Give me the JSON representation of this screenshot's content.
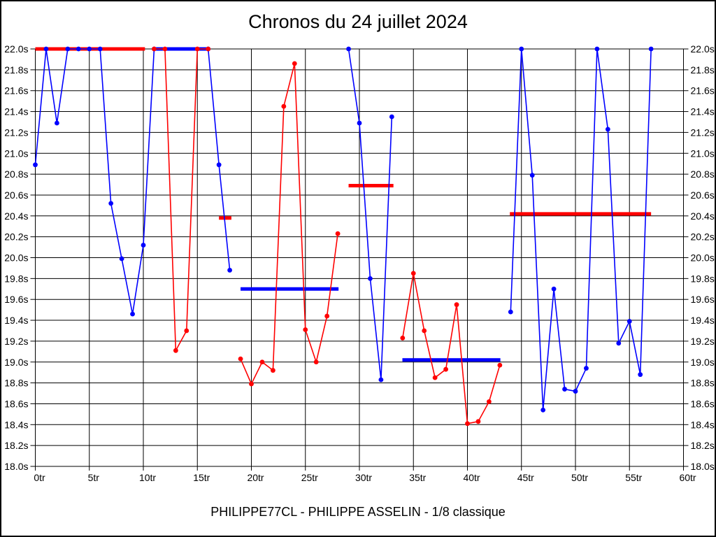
{
  "window": {
    "background": "#ffffff",
    "frame_color": "#000000"
  },
  "title": "Chronos du 24 juillet 2024",
  "caption": "PHILIPPE77CL - PHILIPPE ASSELIN - 1/8 classique",
  "chart_data": {
    "type": "line",
    "title": "Chronos du 24 juillet 2024",
    "xlabel": "",
    "ylabel": "",
    "x_unit": "tr",
    "y_unit": "s",
    "xlim": [
      0,
      60
    ],
    "ylim": [
      18.0,
      22.0
    ],
    "grid": true,
    "legend": "none",
    "x_ticks": [
      0,
      5,
      10,
      15,
      20,
      25,
      30,
      35,
      40,
      45,
      50,
      55,
      60
    ],
    "x_tick_labels": [
      "0tr",
      "5tr",
      "10tr",
      "15tr",
      "20tr",
      "25tr",
      "30tr",
      "35tr",
      "40tr",
      "45tr",
      "50tr",
      "55tr",
      "60tr"
    ],
    "y_ticks": [
      22.0,
      21.8,
      21.6,
      21.4,
      21.2,
      21.0,
      20.8,
      20.6,
      20.4,
      20.2,
      20.0,
      19.8,
      19.6,
      19.4,
      19.2,
      19.0,
      18.8,
      18.6,
      18.4,
      18.2,
      18.0
    ],
    "y_tick_labels": [
      "22.0s",
      "21.8s",
      "21.6s",
      "21.4s",
      "21.2s",
      "21.0s",
      "20.8s",
      "20.6s",
      "20.4s",
      "20.2s",
      "20.0s",
      "19.8s",
      "19.6s",
      "19.4s",
      "19.2s",
      "19.0s",
      "18.8s",
      "18.6s",
      "18.4s",
      "18.2s",
      "18.0s"
    ],
    "series": [
      {
        "name": "blue-series",
        "color": "#0000ff",
        "segments": [
          [
            [
              0,
              20.89
            ],
            [
              1,
              22.0
            ],
            [
              2,
              21.29
            ],
            [
              3,
              22.0
            ],
            [
              4,
              22.0
            ],
            [
              5,
              22.0
            ],
            [
              6,
              22.0
            ],
            [
              7,
              20.52
            ],
            [
              8,
              19.99
            ],
            [
              9,
              19.46
            ],
            [
              10,
              20.12
            ],
            [
              11,
              22.0
            ],
            [
              16,
              22.0
            ],
            [
              17,
              20.89
            ],
            [
              18,
              19.88
            ]
          ],
          [
            [
              29,
              22.0
            ],
            [
              30,
              21.29
            ],
            [
              31,
              19.8
            ],
            [
              32,
              18.83
            ],
            [
              33,
              21.35
            ]
          ],
          [
            [
              44,
              19.48
            ],
            [
              45,
              22.0
            ],
            [
              46,
              20.79
            ],
            [
              47,
              18.54
            ],
            [
              48,
              19.7
            ],
            [
              49,
              18.74
            ],
            [
              50,
              18.72
            ],
            [
              51,
              18.94
            ],
            [
              52,
              22.0
            ],
            [
              53,
              21.23
            ],
            [
              54,
              19.18
            ],
            [
              55,
              19.39
            ],
            [
              56,
              18.88
            ],
            [
              57,
              22.0
            ]
          ]
        ]
      },
      {
        "name": "red-series",
        "color": "#ff0000",
        "segments": [
          [
            [
              11,
              22.0
            ],
            [
              12,
              22.0
            ],
            [
              13,
              19.11
            ],
            [
              14,
              19.3
            ],
            [
              15,
              22.0
            ],
            [
              16,
              22.0
            ]
          ],
          [
            [
              19,
              19.03
            ],
            [
              20,
              18.79
            ],
            [
              21,
              19.0
            ],
            [
              22,
              18.92
            ],
            [
              23,
              21.45
            ],
            [
              24,
              21.86
            ],
            [
              25,
              19.31
            ],
            [
              26,
              19.0
            ],
            [
              27,
              19.44
            ],
            [
              28,
              20.23
            ]
          ],
          [
            [
              34,
              19.23
            ],
            [
              35,
              19.85
            ],
            [
              36,
              19.3
            ],
            [
              37,
              18.85
            ],
            [
              38,
              18.93
            ],
            [
              39,
              19.55
            ],
            [
              40,
              18.41
            ],
            [
              41,
              18.43
            ],
            [
              42,
              18.62
            ],
            [
              43,
              18.97
            ]
          ]
        ]
      }
    ],
    "average_bars": [
      {
        "color": "#ff0000",
        "x_start": 0,
        "x_end": 10.15,
        "y": 22.0
      },
      {
        "color": "#0000ff",
        "x_start": 10.95,
        "x_end": 16.15,
        "y": 22.0
      },
      {
        "color": "#ff0000",
        "x_start": 17.0,
        "x_end": 18.15,
        "y": 20.38
      },
      {
        "color": "#0000ff",
        "x_start": 19.0,
        "x_end": 28.07,
        "y": 19.7
      },
      {
        "color": "#ff0000",
        "x_start": 29.0,
        "x_end": 33.15,
        "y": 20.69
      },
      {
        "color": "#0000ff",
        "x_start": 33.98,
        "x_end": 43.05,
        "y": 19.02
      },
      {
        "color": "#ff0000",
        "x_start": 43.93,
        "x_end": 57.0,
        "y": 20.42
      }
    ]
  }
}
